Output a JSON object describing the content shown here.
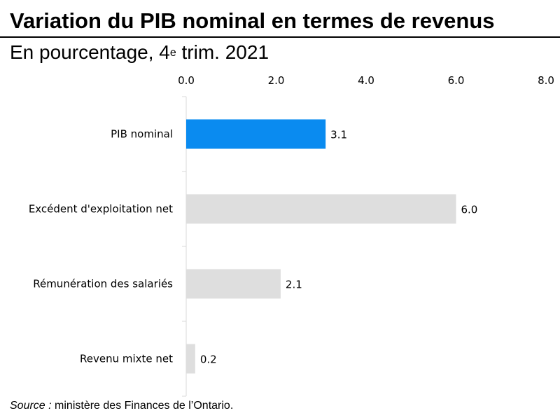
{
  "chart_data": {
    "type": "bar",
    "orientation": "horizontal",
    "title": "Variation du PIB nominal en termes de revenus",
    "subtitle": {
      "prefix": "En pourcentage, 4",
      "superscript": "e",
      "suffix": " trim. 2021"
    },
    "categories": [
      "PIB nominal",
      "Excédent d'exploitation net",
      "Rémunération des salariés",
      "Revenu mixte net"
    ],
    "values": [
      3.1,
      6.0,
      2.1,
      0.2
    ],
    "data_labels": [
      "3.1",
      "6.0",
      "2.1",
      "0.2"
    ],
    "xlim": [
      0,
      8
    ],
    "ticks": [
      0,
      2,
      4,
      6,
      8
    ],
    "tick_labels": [
      "0.0",
      "2.0",
      "4.0",
      "6.0",
      "8.0"
    ],
    "axis_position": "top",
    "grid": false,
    "colors": {
      "highlight": "#0a8bf0",
      "default": "#dedede",
      "axis": "#d9d9d9"
    },
    "highlight_index": 0
  },
  "source": {
    "lead": "Source :",
    "text": " ministère des Finances de l’Ontario."
  }
}
